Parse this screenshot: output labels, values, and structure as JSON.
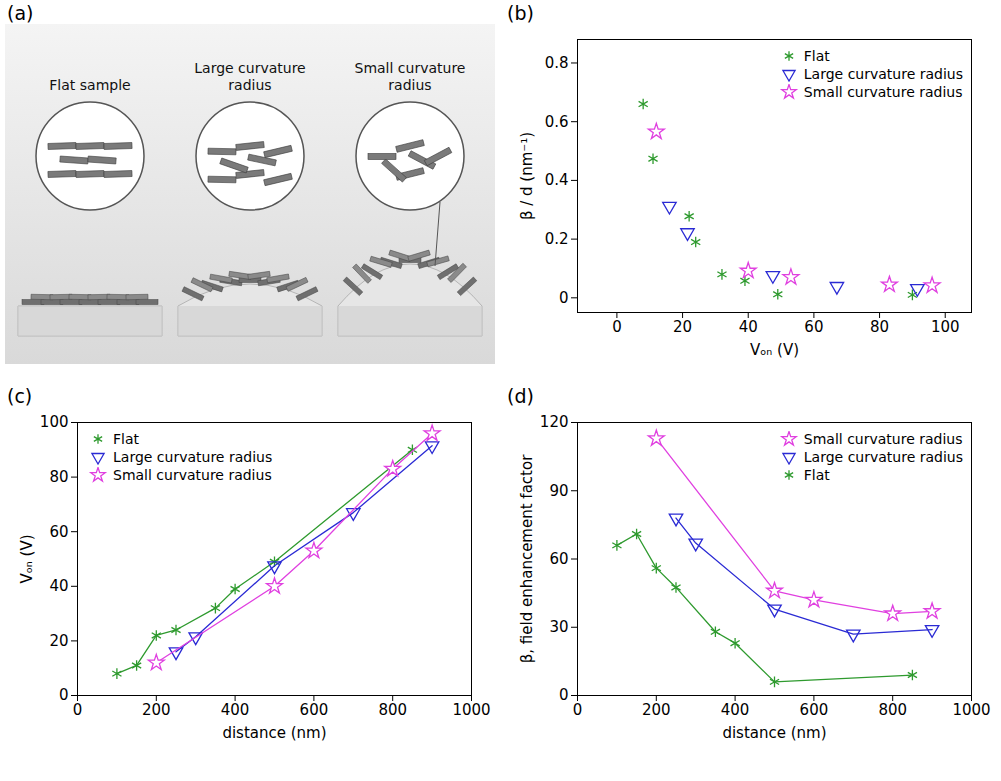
{
  "diagram": {
    "panel_label": "(a)",
    "labels": [
      "Flat sample",
      "Large curvature radius",
      "Small curvature radius"
    ]
  },
  "chart_data": [
    {
      "panel_label": "(b)",
      "type": "scatter",
      "x_label": "Vₒₙ (V)",
      "y_label": "β / d (nm⁻¹)",
      "xlim": [
        -12,
        108
      ],
      "xticks": [
        0,
        20,
        40,
        60,
        80,
        100
      ],
      "ylim": [
        -0.05,
        0.88
      ],
      "yticks": [
        0,
        0.2,
        0.4,
        0.6,
        0.8
      ],
      "grid": false,
      "legend": "upper right",
      "series": [
        {
          "name": "Flat",
          "color": "#2e9a2e",
          "marker": "asterisk",
          "x": [
            8,
            11,
            22,
            24,
            32,
            39,
            49,
            90
          ],
          "values": [
            0.66,
            0.474,
            0.278,
            0.19,
            0.08,
            0.058,
            0.012,
            0.01
          ]
        },
        {
          "name": "Large curvature radius",
          "color": "#2a2ad4",
          "marker": "triangle-down",
          "x": [
            16,
            21.5,
            47.5,
            67,
            91.5
          ],
          "values": [
            0.312,
            0.222,
            0.076,
            0.039,
            0.032
          ]
        },
        {
          "name": "Small curvature radius",
          "color": "#e040e0",
          "marker": "star",
          "x": [
            12,
            40,
            53,
            83,
            96
          ],
          "values": [
            0.566,
            0.092,
            0.07,
            0.045,
            0.042
          ]
        }
      ]
    },
    {
      "panel_label": "(c)",
      "type": "line",
      "x_label": "distance (nm)",
      "y_label": "Vₒₙ (V)",
      "xlim": [
        0,
        1000
      ],
      "xticks": [
        0,
        200,
        400,
        600,
        800,
        1000
      ],
      "ylim": [
        0,
        100
      ],
      "yticks": [
        0,
        20,
        40,
        60,
        80,
        100
      ],
      "grid": false,
      "legend": "upper left",
      "series": [
        {
          "name": "Flat",
          "color": "#2e9a2e",
          "marker": "asterisk",
          "x": [
            100,
            150,
            200,
            250,
            350,
            400,
            500,
            850
          ],
          "values": [
            8,
            11,
            22,
            24,
            32,
            39,
            49,
            90
          ]
        },
        {
          "name": "Large curvature radius",
          "color": "#2a2ad4",
          "marker": "triangle-down",
          "x": [
            250,
            300,
            500,
            700,
            900
          ],
          "values": [
            16,
            21.5,
            47.5,
            67,
            91.5
          ]
        },
        {
          "name": "Small curvature radius",
          "color": "#e040e0",
          "marker": "star",
          "x": [
            200,
            500,
            600,
            800,
            900
          ],
          "values": [
            12,
            40,
            53,
            83,
            96
          ]
        }
      ]
    },
    {
      "panel_label": "(d)",
      "type": "line",
      "x_label": "distance (nm)",
      "y_label": "β, field enhancement factor",
      "xlim": [
        0,
        1000
      ],
      "xticks": [
        0,
        200,
        400,
        600,
        800,
        1000
      ],
      "ylim": [
        0,
        120
      ],
      "yticks": [
        0,
        30,
        60,
        90,
        120
      ],
      "grid": false,
      "legend": "upper right",
      "series": [
        {
          "name": "Small curvature radius",
          "color": "#e040e0",
          "marker": "star",
          "x": [
            200,
            500,
            600,
            800,
            900
          ],
          "values": [
            113,
            46,
            42,
            36,
            37
          ]
        },
        {
          "name": "Large curvature radius",
          "color": "#2a2ad4",
          "marker": "triangle-down",
          "x": [
            250,
            300,
            500,
            700,
            900
          ],
          "values": [
            78,
            67,
            38,
            27,
            29
          ]
        },
        {
          "name": "Flat",
          "color": "#2e9a2e",
          "marker": "asterisk",
          "x": [
            100,
            150,
            200,
            250,
            350,
            400,
            500,
            850
          ],
          "values": [
            66,
            71,
            56,
            47.5,
            28,
            23,
            6,
            9
          ]
        }
      ]
    }
  ]
}
